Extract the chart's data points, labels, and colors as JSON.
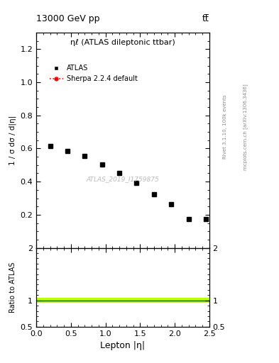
{
  "title_top": "13000 GeV pp",
  "title_right": "tt̅",
  "plot_title": "ηℓ (ATLAS dileptonic ttbar)",
  "watermark": "ATLAS_2019_I1759875",
  "right_label_top": "Rivet 3.1.10, 100k events",
  "right_label_bot": "mcplots.cern.ch [arXiv:1306.3436]",
  "xlabel": "Lepton |η|",
  "ylabel": "1 / σ dσ / d|η|",
  "ylabel_ratio": "Ratio to ATLAS",
  "atlas_x": [
    0.2,
    0.45,
    0.7,
    0.95,
    1.2,
    1.45,
    1.7,
    1.95,
    2.2,
    2.45
  ],
  "atlas_y": [
    0.615,
    0.585,
    0.555,
    0.505,
    0.45,
    0.392,
    0.325,
    0.262,
    0.175,
    0.172
  ],
  "xlim": [
    0,
    2.5
  ],
  "ylim_main": [
    0,
    1.3
  ],
  "ylim_ratio": [
    0.5,
    2.0
  ],
  "yticks_main": [
    0.2,
    0.4,
    0.6,
    0.8,
    1.0,
    1.2
  ],
  "yticks_ratio": [
    0.5,
    1.0,
    2.0
  ],
  "atlas_color": "#000000",
  "sherpa_color": "#ff0000",
  "ratio_line_color_dark": "#006600",
  "ratio_band_color": "#bbff00",
  "marker_size": 5,
  "bg_color": "#ffffff",
  "legend_atlas": "ATLAS",
  "legend_sherpa": "Sherpa 2.2.4 default",
  "watermark_color": "#bbbbbb",
  "right_text_color": "#888888"
}
